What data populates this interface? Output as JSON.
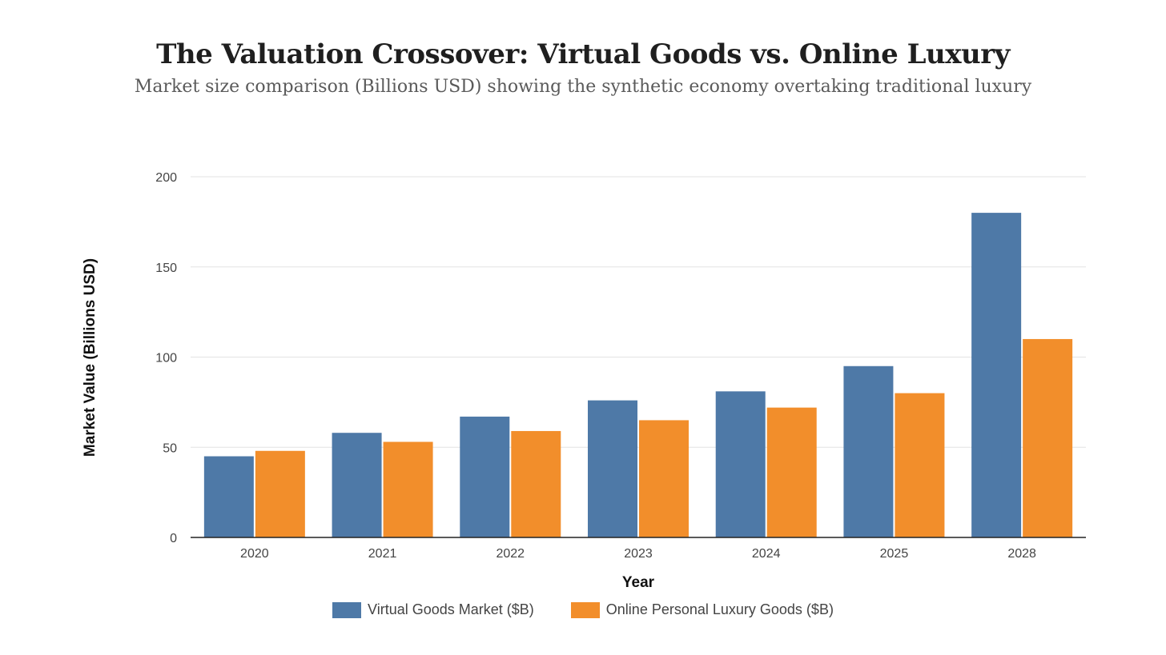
{
  "chart_data": {
    "type": "bar",
    "title": "The Valuation Crossover: Virtual Goods vs. Online Luxury",
    "subtitle": "Market size comparison (Billions USD) showing the synthetic economy overtaking traditional luxury",
    "xlabel": "Year",
    "ylabel": "Market Value (Billions USD)",
    "categories": [
      "2020",
      "2021",
      "2022",
      "2023",
      "2024",
      "2025",
      "2028"
    ],
    "series": [
      {
        "name": "Virtual Goods Market ($B)",
        "color": "#4e79a7",
        "values": [
          45,
          58,
          67,
          76,
          81,
          95,
          180
        ]
      },
      {
        "name": "Online Personal Luxury Goods ($B)",
        "color": "#f28e2b",
        "values": [
          48,
          53,
          59,
          65,
          72,
          80,
          110
        ]
      }
    ],
    "ylim": [
      0,
      200
    ],
    "yticks": [
      "0",
      "50",
      "100",
      "150",
      "200"
    ],
    "grid": true,
    "legend_position": "bottom-center"
  }
}
